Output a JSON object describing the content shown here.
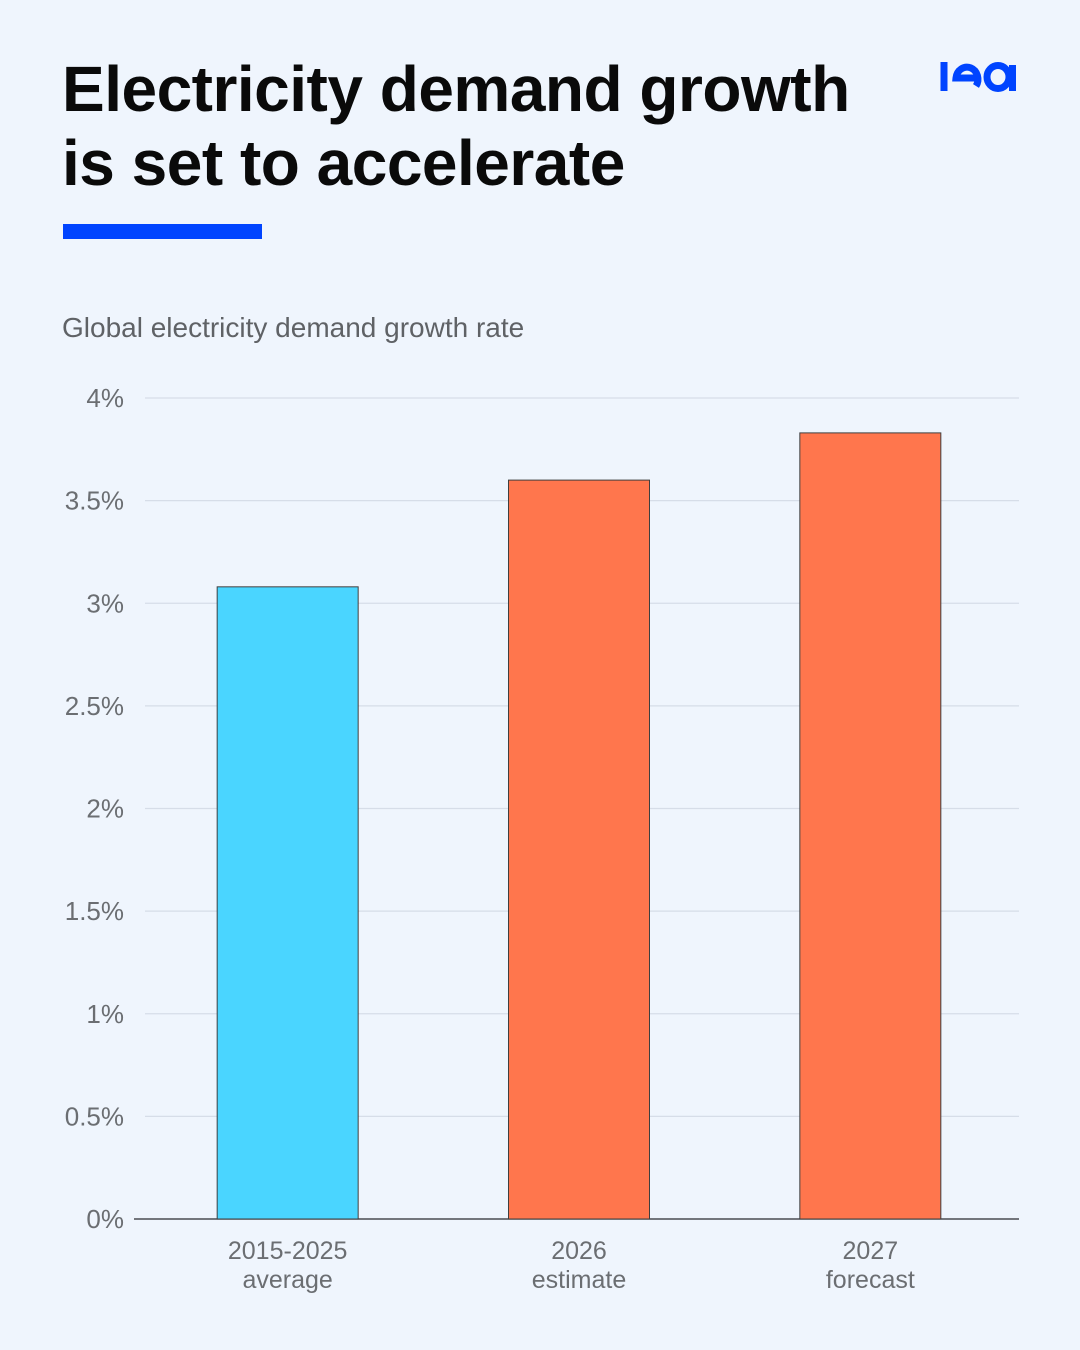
{
  "header": {
    "title_line1": "Electricity demand growth",
    "title_line2": "is set to accelerate",
    "logo_text": "iea",
    "brand_color": "#0044ff"
  },
  "chart_data": {
    "type": "bar",
    "subtitle": "Global electricity demand growth rate",
    "categories": [
      [
        "2015-2025",
        "average"
      ],
      [
        "2026",
        "estimate"
      ],
      [
        "2027",
        "forecast"
      ]
    ],
    "values": [
      3.08,
      3.6,
      3.83
    ],
    "colors": [
      "#4ad5ff",
      "#ff764d",
      "#ff764d"
    ],
    "ylim": [
      0,
      4
    ],
    "yticks": [
      0,
      0.5,
      1,
      1.5,
      2,
      2.5,
      3,
      3.5,
      4
    ],
    "ytick_labels": [
      "0%",
      "0.5%",
      "1%",
      "1.5%",
      "2%",
      "2.5%",
      "3%",
      "3.5%",
      "4%"
    ],
    "grid": true,
    "legend": "none"
  }
}
